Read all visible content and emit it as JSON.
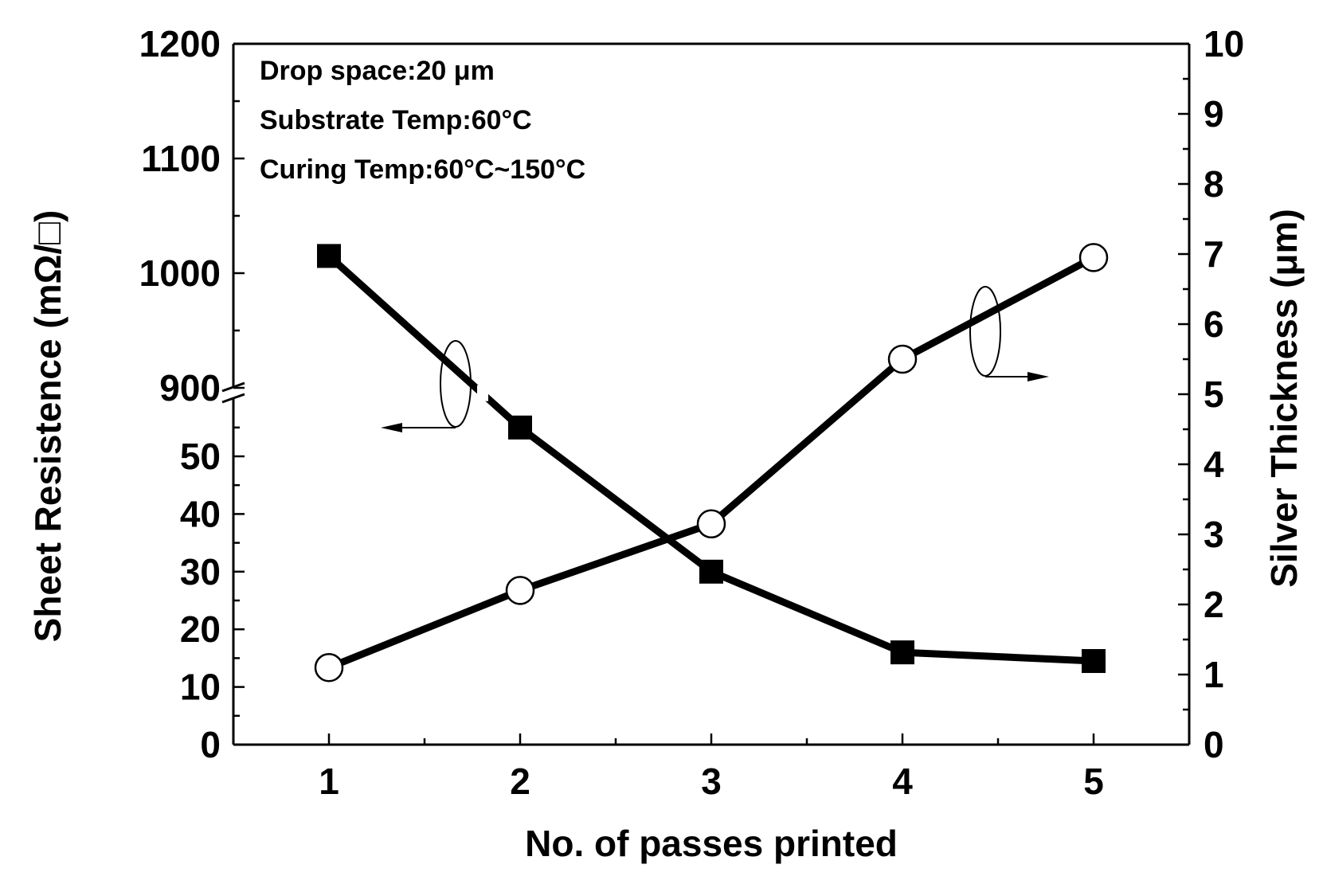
{
  "chart_data": {
    "type": "line",
    "title": "",
    "xlabel": "No. of passes printed",
    "ylabel_left": "Sheet Resistence (mΩ/□)",
    "ylabel_right": "Silver Thickness (μm)",
    "x": [
      1,
      2,
      3,
      4,
      5
    ],
    "x_ticks": [
      "1",
      "2",
      "3",
      "4",
      "5"
    ],
    "xlim": [
      0.5,
      5.5
    ],
    "y_left_lower": {
      "range": [
        0,
        60
      ],
      "ticks": [
        "0",
        "10",
        "20",
        "30",
        "40",
        "50"
      ]
    },
    "y_left_upper": {
      "range": [
        900,
        1200
      ],
      "ticks": [
        "900",
        "1000",
        "1100",
        "1200"
      ]
    },
    "y_left_break_symbol": "//",
    "y_right": {
      "range": [
        0,
        10
      ],
      "ticks": [
        "0",
        "1",
        "2",
        "3",
        "4",
        "5",
        "6",
        "7",
        "8",
        "9",
        "10"
      ]
    },
    "series": [
      {
        "name": "Sheet Resistence",
        "axis": "left",
        "marker": "filled-square",
        "values": [
          1015,
          55,
          30,
          16,
          14.5
        ]
      },
      {
        "name": "Silver Thickness",
        "axis": "right",
        "marker": "open-circle",
        "values": [
          1.1,
          2.2,
          3.15,
          5.5,
          6.95
        ]
      }
    ],
    "annotations": [
      "Drop space:20 μm",
      "Substrate Temp:60°C",
      "Curing Temp:60°C~150°C"
    ],
    "grid": false
  }
}
